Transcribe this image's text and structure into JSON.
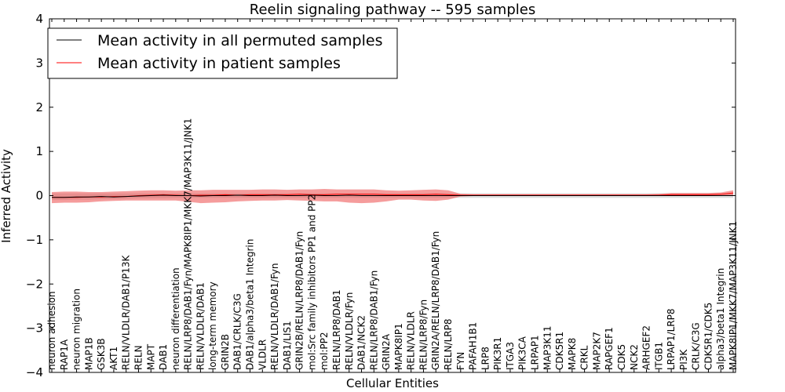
{
  "chart_data": {
    "type": "line",
    "title": "Reelin signaling pathway -- 595 samples",
    "xlabel": "Cellular Entities",
    "ylabel": "Inferred Activity",
    "ylim": [
      -4,
      4
    ],
    "yticks": [
      -4,
      -3,
      -2,
      -1,
      0,
      1,
      2,
      3,
      4
    ],
    "ytick_labels": [
      "−4",
      "−3",
      "−2",
      "−1",
      "0",
      "1",
      "2",
      "3",
      "4"
    ],
    "legend": {
      "location": "top-left",
      "entries": [
        {
          "label": "Mean activity in all permuted samples",
          "color": "#000000"
        },
        {
          "label": "Mean activity in patient samples",
          "color": "#ff0000"
        }
      ]
    },
    "categories": [
      "neuron adhesion",
      "RAP1A",
      "neuron migration",
      "MAP1B",
      "GSK3B",
      "AKT1",
      "RELN/VLDLR/DAB1/P13K",
      "RELN",
      "MAPT",
      "DAB1",
      "neuron differentiation",
      "RELN/LRP8/DAB1/Fyn/MAPK8IP1/MKK7/MAP3K11/JNK1",
      "RELN/VLDLR/DAB1",
      "long-term memory",
      "GRIN2B",
      "DAB1/CRLK/C3G",
      "DAB1/alpha3/beta1 Integrin",
      "VLDLR",
      "RELN/VLDLR/DAB1/Fyn",
      "DAB1/LIS1",
      "GRIN2B/RELN/LRP8/DAB1/Fyn",
      "mol:Src family inhibitors PP1 and PP2",
      "mol:PP2",
      "RELN/LRP8/DAB1",
      "RELN/VLDLR/Fyn",
      "DAB1/NCK2",
      "RELN/LRP8/DAB1/Fyn",
      "GRIN2A",
      "MAPK8IP1",
      "RELN/VLDLR",
      "RELN/LRP8/Fyn",
      "GRIN2A/RELN/LRP8/DAB1/Fyn",
      "RELN/LRP8",
      "FYN",
      "PAFAH1B1",
      "LRP8",
      "PIK3R1",
      "ITGA3",
      "PIK3CA",
      "LRPAP1",
      "MAP3K11",
      "CDK5R1",
      "MAPK8",
      "CRKL",
      "MAP2K7",
      "RAPGEF1",
      "CDK5",
      "NCK2",
      "ARHGEF2",
      "ITGB1",
      "LRPAP1/LRP8",
      "PI3K",
      "CRLK/C3G",
      "CDK5R1/CDK5",
      "alpha3/beta1 Integrin",
      "MAPK8IP1/MKK7/MAP3K11/JNK1"
    ],
    "series": [
      {
        "name": "Mean activity in all permuted samples",
        "color": "#000000",
        "values": [
          -0.04,
          -0.04,
          -0.03,
          -0.03,
          -0.02,
          -0.03,
          -0.02,
          -0.01,
          0.0,
          0.01,
          0.0,
          0.0,
          -0.01,
          0.0,
          0.0,
          0.01,
          0.0,
          0.0,
          0.01,
          0.0,
          0.0,
          0.01,
          0.0,
          0.0,
          0.01,
          0.0,
          0.0,
          0.0,
          0.0,
          0.0,
          0.0,
          0.0,
          0.0,
          0.0,
          0.0,
          0.0,
          0.0,
          0.0,
          0.0,
          0.0,
          0.0,
          0.0,
          0.0,
          0.0,
          0.0,
          0.0,
          0.0,
          0.0,
          0.0,
          0.0,
          0.0,
          0.0,
          0.0,
          0.0,
          0.0,
          0.0
        ],
        "band_low": [
          -0.1,
          -0.1,
          -0.09,
          -0.09,
          -0.08,
          -0.08,
          -0.07,
          -0.06,
          -0.06,
          -0.06,
          -0.05,
          -0.05,
          -0.05,
          -0.05,
          -0.05,
          -0.05,
          -0.05,
          -0.05,
          -0.05,
          -0.05,
          -0.05,
          -0.05,
          -0.05,
          -0.05,
          -0.05,
          -0.05,
          -0.05,
          -0.05,
          -0.05,
          -0.05,
          -0.05,
          -0.05,
          -0.05,
          -0.05,
          -0.05,
          -0.05,
          -0.05,
          -0.05,
          -0.05,
          -0.05,
          -0.05,
          -0.05,
          -0.05,
          -0.05,
          -0.05,
          -0.05,
          -0.05,
          -0.05,
          -0.05,
          -0.05,
          -0.05,
          -0.05,
          -0.05,
          -0.05,
          -0.05,
          -0.05
        ],
        "band_high": [
          0.05,
          0.05,
          0.05,
          0.05,
          0.05,
          0.05,
          0.05,
          0.05,
          0.05,
          0.05,
          0.05,
          0.05,
          0.05,
          0.05,
          0.05,
          0.05,
          0.05,
          0.05,
          0.05,
          0.05,
          0.05,
          0.05,
          0.05,
          0.05,
          0.05,
          0.05,
          0.05,
          0.05,
          0.05,
          0.05,
          0.05,
          0.05,
          0.05,
          0.05,
          0.05,
          0.05,
          0.05,
          0.05,
          0.05,
          0.05,
          0.05,
          0.05,
          0.05,
          0.05,
          0.05,
          0.05,
          0.05,
          0.05,
          0.05,
          0.05,
          0.05,
          0.05,
          0.05,
          0.05,
          0.05,
          0.05
        ],
        "band_color": "#bbbbbb"
      },
      {
        "name": "Mean activity in patient samples",
        "color": "#ff0000",
        "values": [
          -0.04,
          -0.04,
          -0.04,
          -0.03,
          -0.03,
          -0.02,
          -0.02,
          0.0,
          0.01,
          0.02,
          0.01,
          0.0,
          0.01,
          0.01,
          0.02,
          0.01,
          0.02,
          0.02,
          0.02,
          0.02,
          0.03,
          0.02,
          0.02,
          0.03,
          0.03,
          0.03,
          0.03,
          0.02,
          0.02,
          0.02,
          0.02,
          0.03,
          0.02,
          0.01,
          0.01,
          0.01,
          0.01,
          0.01,
          0.01,
          0.01,
          0.01,
          0.01,
          0.01,
          0.01,
          0.01,
          0.01,
          0.01,
          0.01,
          0.01,
          0.01,
          0.02,
          0.02,
          0.02,
          0.02,
          0.03,
          0.06
        ],
        "band_low": [
          -0.17,
          -0.16,
          -0.16,
          -0.15,
          -0.13,
          -0.12,
          -0.11,
          -0.11,
          -0.11,
          -0.11,
          -0.11,
          -0.14,
          -0.17,
          -0.16,
          -0.15,
          -0.13,
          -0.12,
          -0.11,
          -0.11,
          -0.1,
          -0.11,
          -0.12,
          -0.13,
          -0.13,
          -0.16,
          -0.17,
          -0.16,
          -0.13,
          -0.09,
          -0.09,
          -0.11,
          -0.12,
          -0.09,
          -0.02,
          -0.01,
          -0.01,
          -0.01,
          -0.01,
          -0.01,
          -0.01,
          -0.01,
          -0.01,
          -0.01,
          -0.01,
          -0.01,
          -0.01,
          -0.01,
          -0.01,
          -0.01,
          -0.01,
          -0.01,
          -0.01,
          -0.01,
          -0.01,
          -0.01,
          0.0
        ],
        "band_high": [
          0.08,
          0.09,
          0.09,
          0.08,
          0.08,
          0.09,
          0.1,
          0.11,
          0.12,
          0.12,
          0.11,
          0.12,
          0.12,
          0.13,
          0.13,
          0.13,
          0.13,
          0.14,
          0.14,
          0.13,
          0.14,
          0.14,
          0.15,
          0.14,
          0.14,
          0.14,
          0.14,
          0.12,
          0.11,
          0.12,
          0.13,
          0.14,
          0.12,
          0.04,
          0.03,
          0.03,
          0.03,
          0.03,
          0.03,
          0.03,
          0.03,
          0.03,
          0.03,
          0.03,
          0.03,
          0.03,
          0.03,
          0.03,
          0.03,
          0.04,
          0.06,
          0.06,
          0.06,
          0.06,
          0.07,
          0.12
        ],
        "band_color": "#ee5a5a"
      }
    ]
  }
}
